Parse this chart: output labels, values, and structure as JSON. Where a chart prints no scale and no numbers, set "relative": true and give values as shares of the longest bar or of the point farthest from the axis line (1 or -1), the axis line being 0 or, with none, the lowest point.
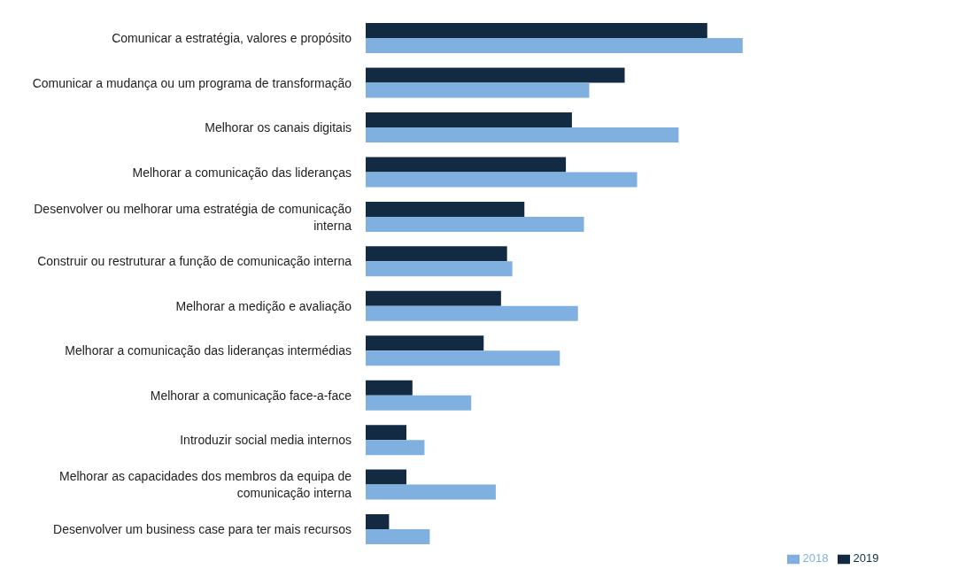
{
  "chart_data": {
    "type": "bar",
    "orientation": "horizontal",
    "relative": true,
    "legend": "bottom",
    "categories": [
      "Comunicar a estratégia, valores e propósito",
      "Comunicar a mudança ou um programa de transformação",
      "Melhorar os canais digitais",
      "Melhorar a comunicação das lideranças",
      "Desenvolver ou melhorar uma estratégia de comunicação interna",
      "Construir ou restruturar a função de comunicação interna",
      "Melhorar a medição e avaliação",
      "Melhorar a comunicação das lideranças intermédias",
      "Melhorar a comunicação face-a-face",
      "Introduzir social media internos",
      "Melhorar as capacidades dos membros da equipa de comunicação interna",
      "Desenvolver um business case para ter mais recursos"
    ],
    "series": [
      {
        "name": "2019",
        "color": "#132a43",
        "values": [
          0.906,
          0.687,
          0.547,
          0.531,
          0.421,
          0.375,
          0.359,
          0.313,
          0.124,
          0.108,
          0.108,
          0.062
        ]
      },
      {
        "name": "2018",
        "color": "#7fb0e0",
        "values": [
          1,
          0.593,
          0.83,
          0.72,
          0.579,
          0.389,
          0.563,
          0.515,
          0.28,
          0.156,
          0.345,
          0.17
        ]
      }
    ]
  }
}
